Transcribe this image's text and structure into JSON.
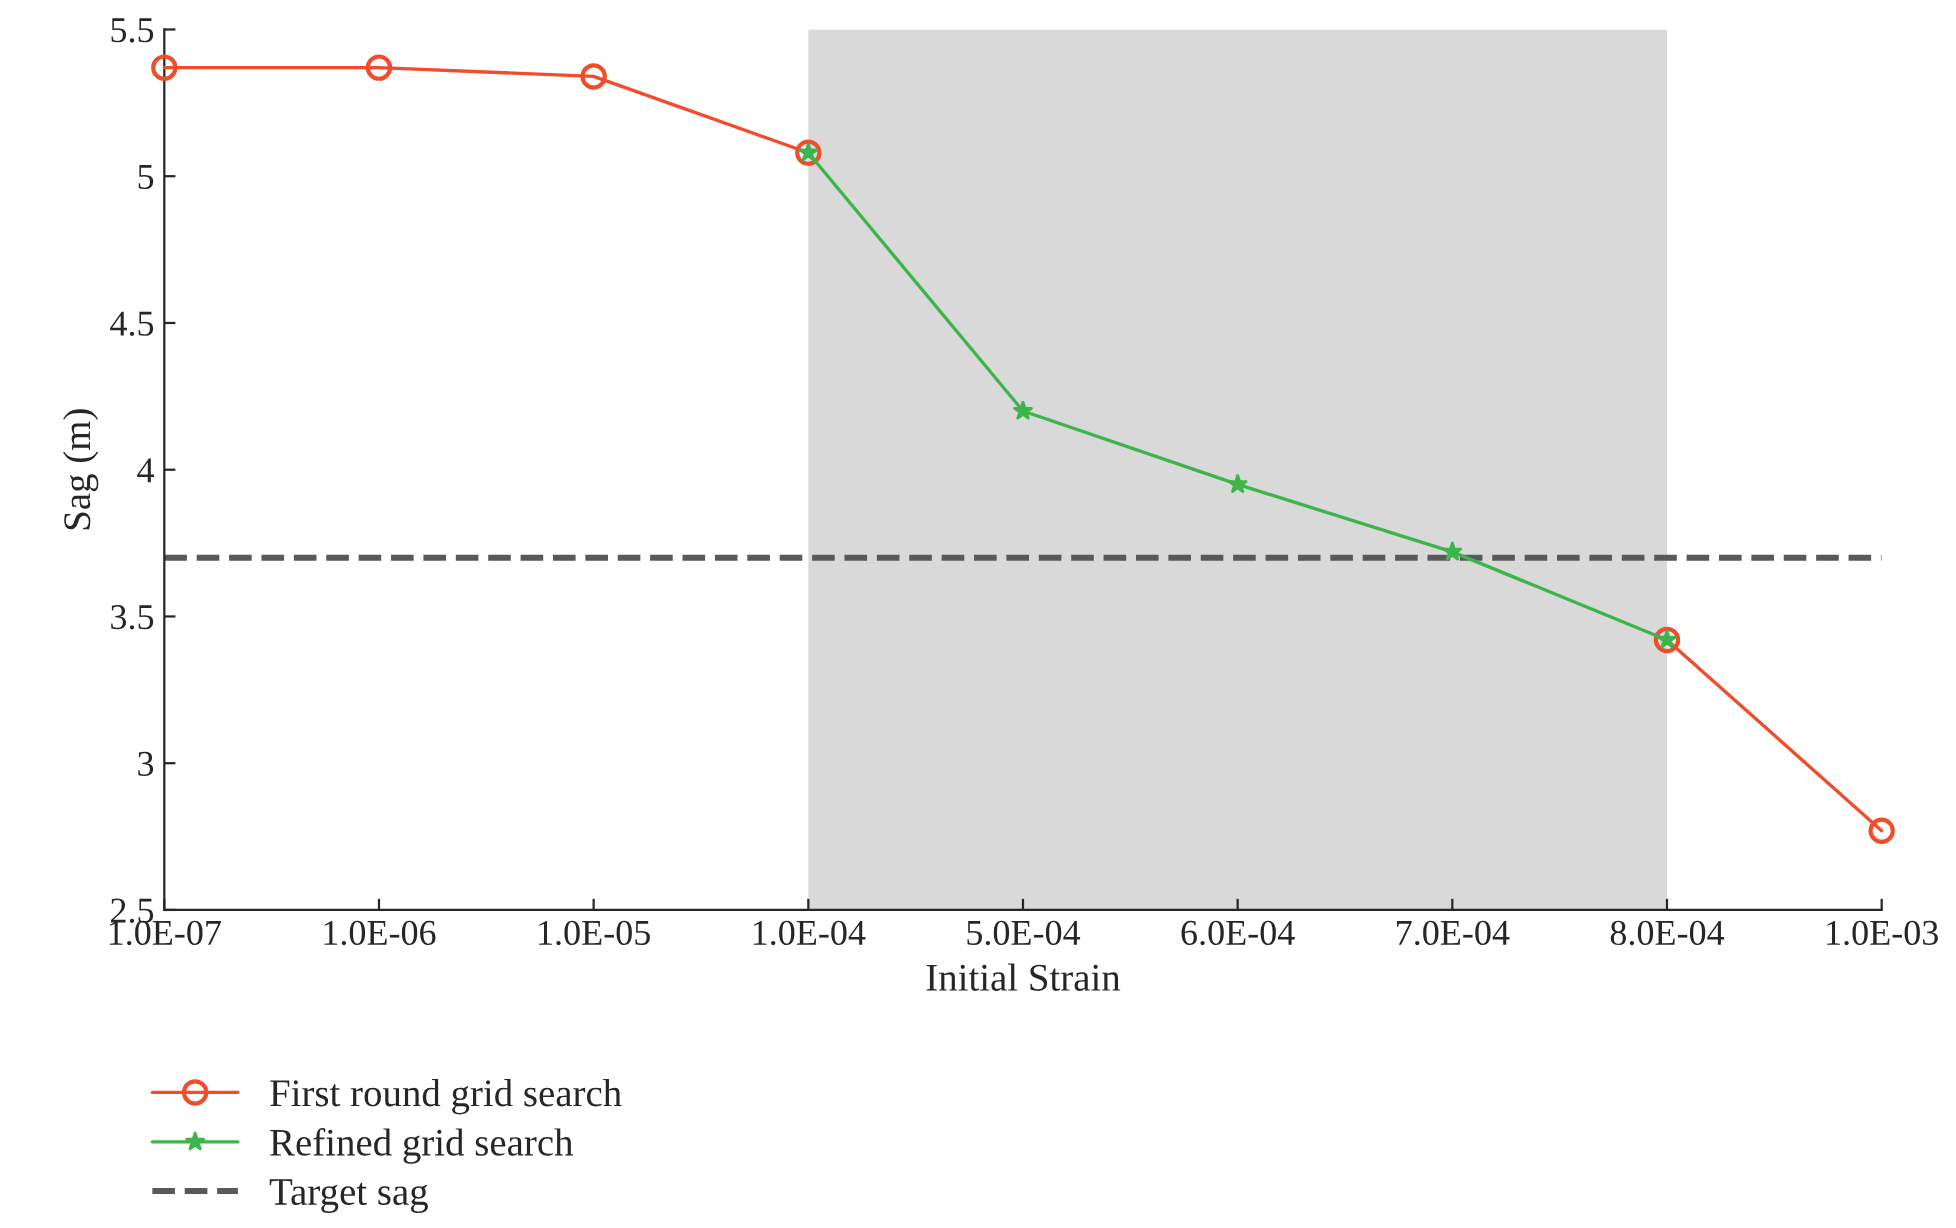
{
  "chart_data": {
    "type": "line",
    "xlabel": "Initial Strain",
    "ylabel": "Sag (m)",
    "categories": [
      "1.0E-07",
      "1.0E-06",
      "1.0E-05",
      "1.0E-04",
      "5.0E-04",
      "6.0E-04",
      "7.0E-04",
      "8.0E-04",
      "1.0E-03"
    ],
    "series": [
      {
        "name": "First round grid search",
        "color": "#f04e2a",
        "marker": "circle",
        "values": [
          5.37,
          5.37,
          5.34,
          5.08,
          null,
          null,
          null,
          3.42,
          2.77
        ]
      },
      {
        "name": "Refined grid search",
        "color": "#3db54a",
        "marker": "star",
        "values": [
          null,
          null,
          null,
          5.08,
          4.2,
          3.95,
          3.72,
          3.42,
          null
        ]
      }
    ],
    "ylim": [
      2.5,
      5.5
    ],
    "yticks": [
      2.5,
      3,
      3.5,
      4,
      4.5,
      5,
      5.5
    ],
    "ref_lines": [
      {
        "axis": "y",
        "value": 3.7,
        "label": "Target sag",
        "color": "#595959",
        "line_style": "dashed"
      }
    ],
    "bands": [
      {
        "axis": "x",
        "from": "1.0E-04",
        "to": "8.0E-04",
        "color": "#d9d9d9"
      }
    ],
    "grid": false,
    "legend": "bottom left"
  }
}
